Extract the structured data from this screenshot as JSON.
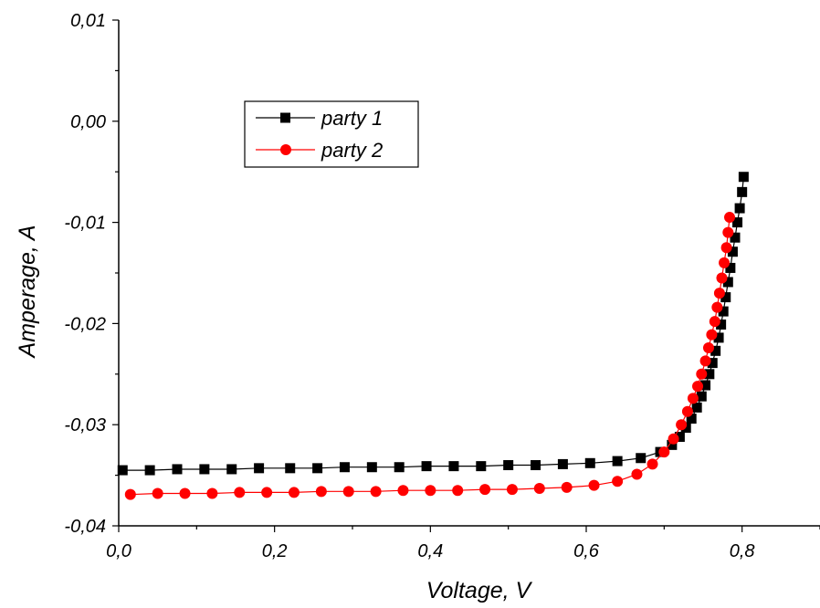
{
  "chart_data": {
    "type": "line",
    "title": "",
    "xlabel": "Voltage, V",
    "ylabel": "Amperage, A",
    "xlim": [
      0.0,
      0.9
    ],
    "ylim": [
      -0.04,
      0.01
    ],
    "x_ticks": [
      "0,0",
      "0,2",
      "0,4",
      "0,6",
      "0,8"
    ],
    "y_ticks": [
      "-0,04",
      "-0,03",
      "-0,02",
      "-0,01",
      "0,00",
      "0,01"
    ],
    "grid": false,
    "legend_position": "top-left",
    "series": [
      {
        "name": "party 1",
        "color": "#000000",
        "marker": "square",
        "x": [
          0.005,
          0.04,
          0.075,
          0.11,
          0.145,
          0.18,
          0.22,
          0.255,
          0.29,
          0.325,
          0.36,
          0.395,
          0.43,
          0.465,
          0.5,
          0.535,
          0.57,
          0.605,
          0.64,
          0.67,
          0.695,
          0.71,
          0.72,
          0.728,
          0.735,
          0.742,
          0.748,
          0.753,
          0.758,
          0.762,
          0.766,
          0.77,
          0.773,
          0.776,
          0.779,
          0.782,
          0.785,
          0.788,
          0.791,
          0.794,
          0.797,
          0.8,
          0.802
        ],
        "y": [
          -0.0345,
          -0.0345,
          -0.0344,
          -0.0344,
          -0.0344,
          -0.0343,
          -0.0343,
          -0.0343,
          -0.0342,
          -0.0342,
          -0.0342,
          -0.0341,
          -0.0341,
          -0.0341,
          -0.034,
          -0.034,
          -0.0339,
          -0.0338,
          -0.0336,
          -0.0333,
          -0.0327,
          -0.032,
          -0.0312,
          -0.0303,
          -0.0294,
          -0.0283,
          -0.0272,
          -0.0261,
          -0.025,
          -0.0239,
          -0.0227,
          -0.0214,
          -0.0201,
          -0.0188,
          -0.0174,
          -0.0159,
          -0.0145,
          -0.0129,
          -0.0115,
          -0.01,
          -0.0086,
          -0.007,
          -0.0055
        ]
      },
      {
        "name": "party 2",
        "color": "#ff0000",
        "marker": "circle",
        "x": [
          0.015,
          0.05,
          0.085,
          0.12,
          0.155,
          0.19,
          0.225,
          0.26,
          0.295,
          0.33,
          0.365,
          0.4,
          0.435,
          0.47,
          0.505,
          0.54,
          0.575,
          0.61,
          0.64,
          0.665,
          0.685,
          0.7,
          0.712,
          0.722,
          0.73,
          0.737,
          0.743,
          0.748,
          0.753,
          0.757,
          0.761,
          0.765,
          0.768,
          0.771,
          0.774,
          0.777,
          0.78,
          0.782,
          0.784
        ],
        "y": [
          -0.0369,
          -0.0368,
          -0.0368,
          -0.0368,
          -0.0367,
          -0.0367,
          -0.0367,
          -0.0366,
          -0.0366,
          -0.0366,
          -0.0365,
          -0.0365,
          -0.0365,
          -0.0364,
          -0.0364,
          -0.0363,
          -0.0362,
          -0.036,
          -0.0356,
          -0.0349,
          -0.0339,
          -0.0327,
          -0.0314,
          -0.03,
          -0.0287,
          -0.0274,
          -0.0262,
          -0.025,
          -0.0237,
          -0.0224,
          -0.0211,
          -0.0198,
          -0.0184,
          -0.017,
          -0.0155,
          -0.014,
          -0.0125,
          -0.011,
          -0.0095
        ]
      }
    ]
  }
}
